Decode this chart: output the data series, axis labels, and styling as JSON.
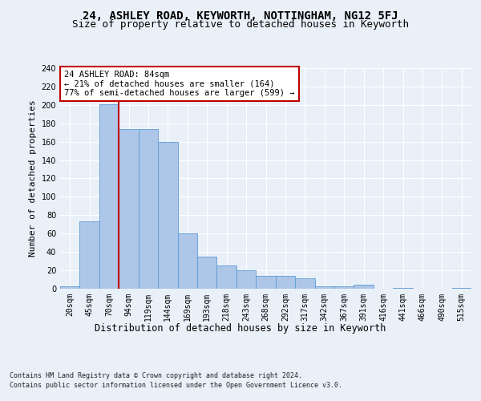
{
  "title1": "24, ASHLEY ROAD, KEYWORTH, NOTTINGHAM, NG12 5FJ",
  "title2": "Size of property relative to detached houses in Keyworth",
  "xlabel": "Distribution of detached houses by size in Keyworth",
  "ylabel": "Number of detached properties",
  "bar_labels": [
    "20sqm",
    "45sqm",
    "70sqm",
    "94sqm",
    "119sqm",
    "144sqm",
    "169sqm",
    "193sqm",
    "218sqm",
    "243sqm",
    "268sqm",
    "292sqm",
    "317sqm",
    "342sqm",
    "367sqm",
    "391sqm",
    "416sqm",
    "441sqm",
    "466sqm",
    "490sqm",
    "515sqm"
  ],
  "bar_values": [
    3,
    73,
    201,
    174,
    174,
    160,
    60,
    35,
    25,
    20,
    14,
    14,
    11,
    3,
    3,
    4,
    0,
    1,
    0,
    0,
    1
  ],
  "bar_color": "#aec6e8",
  "bar_edge_color": "#5b9bd5",
  "property_line_x": 2.5,
  "annotation_text1": "24 ASHLEY ROAD: 84sqm",
  "annotation_text2": "← 21% of detached houses are smaller (164)",
  "annotation_text3": "77% of semi-detached houses are larger (599) →",
  "annotation_box_color": "#ffffff",
  "annotation_box_edge": "#c00000",
  "line_color": "#c00000",
  "footer1": "Contains HM Land Registry data © Crown copyright and database right 2024.",
  "footer2": "Contains public sector information licensed under the Open Government Licence v3.0.",
  "ylim": [
    0,
    240
  ],
  "yticks": [
    0,
    20,
    40,
    60,
    80,
    100,
    120,
    140,
    160,
    180,
    200,
    220,
    240
  ],
  "bg_color": "#eaf0f8",
  "grid_color": "#ffffff",
  "title1_fontsize": 10,
  "title2_fontsize": 9,
  "xlabel_fontsize": 8.5,
  "ylabel_fontsize": 8,
  "footer_fontsize": 6,
  "tick_fontsize": 7,
  "annot_fontsize": 7.5
}
